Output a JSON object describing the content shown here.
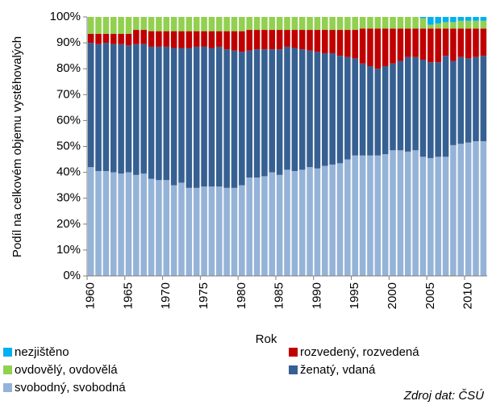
{
  "chart_data": {
    "type": "stacked_bar_100",
    "x_label": "Rok",
    "y_label": "Podíl na celkovém objemu vystěhovalých",
    "source": "Zdroj dat: ČSÚ",
    "categories": [
      "1960",
      null,
      null,
      null,
      null,
      "1965",
      null,
      null,
      null,
      null,
      "1970",
      null,
      null,
      null,
      null,
      "1975",
      null,
      null,
      null,
      null,
      "1980",
      null,
      null,
      null,
      null,
      "1985",
      null,
      null,
      null,
      null,
      "1990",
      null,
      null,
      null,
      null,
      "1995",
      null,
      null,
      null,
      null,
      "2000",
      null,
      null,
      null,
      null,
      "2005",
      null,
      null,
      null,
      null,
      "2010",
      null,
      null
    ],
    "ylim": [
      0,
      100
    ],
    "yticks": [
      {
        "value": 0,
        "label": "0%"
      },
      {
        "value": 10,
        "label": "10%"
      },
      {
        "value": 20,
        "label": "20%"
      },
      {
        "value": 30,
        "label": "30%"
      },
      {
        "value": 40,
        "label": "40%"
      },
      {
        "value": 50,
        "label": "50%"
      },
      {
        "value": 60,
        "label": "60%"
      },
      {
        "value": 70,
        "label": "70%"
      },
      {
        "value": 80,
        "label": "80%"
      },
      {
        "value": 90,
        "label": "90%"
      },
      {
        "value": 100,
        "label": "100%"
      }
    ],
    "series": [
      {
        "name": "svobodný, svobodná",
        "color": "#95b3d7",
        "values": [
          42,
          40.5,
          40.5,
          40,
          39.5,
          40,
          39,
          39.5,
          37.5,
          37,
          37,
          35,
          36,
          34,
          34,
          34.5,
          34.5,
          34.5,
          34,
          34,
          35,
          38,
          38,
          38.5,
          40,
          39,
          41,
          40.5,
          41,
          42,
          41.5,
          42.5,
          43,
          43.5,
          45,
          46.5,
          46.5,
          46.5,
          46.5,
          47,
          48.5,
          48.5,
          48,
          48.5,
          46,
          45.5,
          46,
          46,
          50.5,
          51,
          51.5,
          52,
          52
        ]
      },
      {
        "name": "ženatý, vdaná",
        "color": "#366092",
        "values": [
          48,
          49,
          49.5,
          49.5,
          50,
          49,
          50.5,
          50,
          51,
          51.5,
          51.5,
          53,
          52,
          54,
          54.5,
          54,
          53.5,
          54,
          53.5,
          53,
          51.5,
          49,
          49.5,
          49,
          47.5,
          48.5,
          47.5,
          47.5,
          46.5,
          45,
          45,
          43.5,
          43,
          41.5,
          39.5,
          37.5,
          35.5,
          34.5,
          33.5,
          34,
          33.5,
          34.5,
          36.5,
          36,
          37.5,
          37,
          36.5,
          39,
          32.5,
          33.5,
          32.5,
          32.5,
          33
        ]
      },
      {
        "name": "rozvedený, rozvedená",
        "color": "#c00000",
        "values": [
          3.5,
          4,
          3.5,
          4,
          4,
          4.5,
          5.5,
          5.5,
          6,
          6,
          6,
          6.5,
          6.5,
          6.5,
          6,
          6,
          6.5,
          6,
          7,
          7.5,
          8,
          8,
          7.5,
          7.5,
          7.5,
          7.5,
          6.5,
          7,
          7.5,
          8,
          8.5,
          9,
          9,
          10,
          10.5,
          11,
          13.5,
          14.5,
          15.5,
          14.5,
          13.5,
          12.5,
          11,
          11,
          12,
          13,
          13,
          10.5,
          12.5,
          11,
          11.5,
          11,
          10.5
        ]
      },
      {
        "name": "ovdovělý, ovdovělá",
        "color": "#92d050",
        "values": [
          6.5,
          6.5,
          6.5,
          6.5,
          6.5,
          6.5,
          5,
          5,
          5.5,
          5.5,
          5.5,
          5.5,
          5.5,
          5.5,
          5.5,
          5.5,
          5.5,
          5.5,
          5.5,
          5.5,
          5.5,
          5,
          5,
          5,
          5,
          5,
          5,
          5,
          5,
          5,
          5,
          5,
          5,
          5,
          5,
          5,
          4.5,
          4.5,
          4.5,
          4.5,
          4.5,
          4.5,
          4.5,
          4.5,
          4,
          1.5,
          2,
          2.5,
          2.5,
          3,
          3,
          3,
          3
        ]
      },
      {
        "name": "nezjištěno",
        "color": "#00b0f0",
        "values": [
          0,
          0,
          0,
          0,
          0,
          0,
          0,
          0,
          0,
          0,
          0,
          0,
          0,
          0,
          0,
          0,
          0,
          0,
          0,
          0,
          0,
          0,
          0,
          0,
          0,
          0,
          0,
          0,
          0,
          0,
          0,
          0,
          0,
          0,
          0,
          0,
          0,
          0,
          0,
          0,
          0,
          0,
          0,
          0,
          0.5,
          3,
          2.5,
          2,
          2,
          1.5,
          1.5,
          1.5,
          1.5
        ]
      }
    ]
  }
}
